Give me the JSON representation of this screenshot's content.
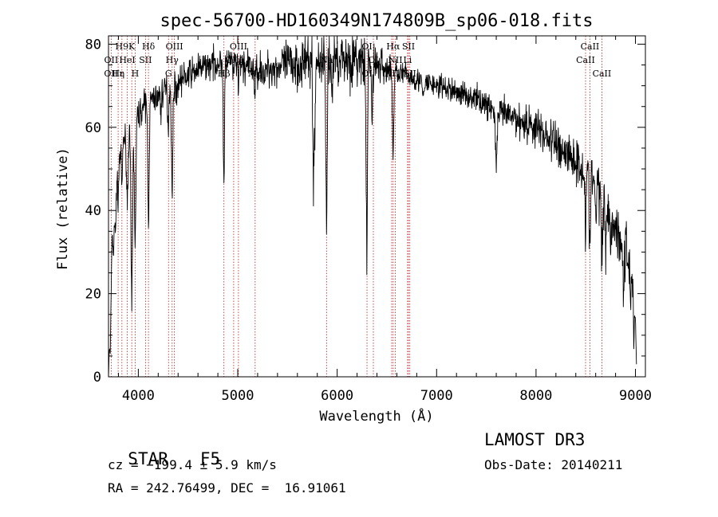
{
  "chart_data": {
    "type": "line",
    "title": "spec-56700-HD160349N174809B_sp06-018.fits",
    "xlabel": "Wavelength (Å)",
    "ylabel": "Flux (relative)",
    "xlim": [
      3700,
      9100
    ],
    "ylim": [
      0,
      82
    ],
    "xticks": [
      4000,
      5000,
      6000,
      7000,
      8000,
      9000
    ],
    "yticks": [
      0,
      20,
      40,
      60,
      80
    ],
    "grid": false,
    "color": "#000000",
    "line_color": "#b22222",
    "continuum": [
      [
        3700,
        0
      ],
      [
        3712,
        14
      ],
      [
        3725,
        28
      ],
      [
        3745,
        38
      ],
      [
        3770,
        46
      ],
      [
        3800,
        52
      ],
      [
        3850,
        57
      ],
      [
        3900,
        59
      ],
      [
        3950,
        60
      ],
      [
        4000,
        63
      ],
      [
        4050,
        65
      ],
      [
        4100,
        66
      ],
      [
        4200,
        67.5
      ],
      [
        4300,
        69.5
      ],
      [
        4400,
        71
      ],
      [
        4500,
        72.5
      ],
      [
        4600,
        74
      ],
      [
        4700,
        75
      ],
      [
        4800,
        75.5
      ],
      [
        4900,
        75.8
      ],
      [
        5000,
        75.5
      ],
      [
        5100,
        74.5
      ],
      [
        5200,
        74
      ],
      [
        5400,
        74.5
      ],
      [
        5600,
        75.5
      ],
      [
        5800,
        76
      ],
      [
        5900,
        76.5
      ],
      [
        6000,
        77
      ],
      [
        6100,
        76.5
      ],
      [
        6200,
        76
      ],
      [
        6300,
        75.5
      ],
      [
        6400,
        75
      ],
      [
        6500,
        74
      ],
      [
        6600,
        73.5
      ],
      [
        6700,
        72.5
      ],
      [
        6800,
        71.5
      ],
      [
        7000,
        70
      ],
      [
        7200,
        68.5
      ],
      [
        7400,
        67
      ],
      [
        7600,
        64
      ],
      [
        7800,
        62
      ],
      [
        8000,
        60
      ],
      [
        8200,
        56
      ],
      [
        8400,
        52
      ],
      [
        8600,
        47
      ],
      [
        8700,
        42
      ],
      [
        8800,
        36
      ],
      [
        8900,
        30
      ],
      [
        8960,
        27
      ],
      [
        9000,
        14
      ],
      [
        9010,
        3
      ]
    ],
    "absorption": [
      [
        3720,
        14,
        7
      ],
      [
        3750,
        10,
        6
      ],
      [
        3770,
        12,
        6
      ],
      [
        3797,
        9,
        6
      ],
      [
        3835,
        10,
        6
      ],
      [
        3889,
        16,
        8
      ],
      [
        3934,
        42,
        8
      ],
      [
        3968,
        30,
        7
      ],
      [
        4102,
        28,
        7
      ],
      [
        4227,
        5,
        4
      ],
      [
        4300,
        9,
        6
      ],
      [
        4340,
        26,
        7
      ],
      [
        4384,
        5,
        4
      ],
      [
        4861,
        30,
        6
      ],
      [
        4958,
        5,
        4
      ],
      [
        5007,
        8,
        4
      ],
      [
        5172,
        6,
        6
      ],
      [
        5270,
        4,
        6
      ],
      [
        5760,
        26,
        6
      ],
      [
        5775,
        18,
        6
      ],
      [
        5889,
        22,
        5
      ],
      [
        5896,
        33,
        5
      ],
      [
        5950,
        14,
        4
      ],
      [
        6290,
        20,
        5
      ],
      [
        6300,
        44,
        5
      ],
      [
        6350,
        15,
        5
      ],
      [
        6563,
        20,
        7
      ],
      [
        6867,
        4,
        10
      ],
      [
        7600,
        12,
        10
      ],
      [
        8498,
        12,
        7
      ],
      [
        8542,
        16,
        7
      ],
      [
        8600,
        10,
        6
      ],
      [
        8662,
        15,
        7
      ],
      [
        8700,
        10,
        6
      ],
      [
        8750,
        9,
        5
      ],
      [
        8880,
        13,
        5
      ],
      [
        8950,
        11,
        5
      ],
      [
        8985,
        10,
        5
      ]
    ],
    "noise": [
      [
        3700,
        2
      ],
      [
        4000,
        2.5
      ],
      [
        4800,
        2.5
      ],
      [
        5300,
        3
      ],
      [
        5700,
        5
      ],
      [
        6300,
        4.5
      ],
      [
        6600,
        2
      ],
      [
        7500,
        2.2
      ],
      [
        8000,
        3.5
      ],
      [
        8500,
        4.5
      ],
      [
        9000,
        5
      ]
    ],
    "lines": [
      {
        "label": "H9",
        "wl": 3835,
        "row": 0
      },
      {
        "label": "K",
        "wl": 3934,
        "row": 0
      },
      {
        "label": "Hδ",
        "wl": 4102,
        "row": 0
      },
      {
        "label": "OIII",
        "wl": 4363,
        "row": 0
      },
      {
        "label": "OIII",
        "wl": 5007,
        "row": 0
      },
      {
        "label": "OI",
        "wl": 6300,
        "row": 0
      },
      {
        "label": "Hα",
        "wl": 6563,
        "row": 0
      },
      {
        "label": "SII",
        "wl": 6717,
        "row": 0
      },
      {
        "label": "CaII",
        "wl": 8542,
        "row": 0
      },
      {
        "label": "OII",
        "wl": 3727,
        "row": 1
      },
      {
        "label": "HeI",
        "wl": 3889,
        "row": 1
      },
      {
        "label": "SII",
        "wl": 4072,
        "row": 1
      },
      {
        "label": "Hγ",
        "wl": 4340,
        "row": 1
      },
      {
        "label": "OIII",
        "wl": 4959,
        "row": 1
      },
      {
        "label": "Na",
        "wl": 5893,
        "row": 1
      },
      {
        "label": "OI",
        "wl": 6364,
        "row": 1
      },
      {
        "label": "NII",
        "wl": 6584,
        "row": 1
      },
      {
        "label": "Li",
        "wl": 6708,
        "row": 1
      },
      {
        "label": "CaII",
        "wl": 8498,
        "row": 1
      },
      {
        "label": "OII",
        "wl": 3726,
        "row": 2
      },
      {
        "label": "Hε",
        "wl": 3797,
        "row": 2
      },
      {
        "label": "η",
        "wl": 3835,
        "row": 2
      },
      {
        "label": "H",
        "wl": 3968,
        "row": 2
      },
      {
        "label": "G",
        "wl": 4304,
        "row": 2
      },
      {
        "label": "Hβ",
        "wl": 4861,
        "row": 2
      },
      {
        "label": "Mg",
        "wl": 5175,
        "row": 2
      },
      {
        "label": "OI",
        "wl": 6300,
        "row": 2
      },
      {
        "label": "NII",
        "wl": 6548,
        "row": 2
      },
      {
        "label": "SII",
        "wl": 6731,
        "row": 2
      },
      {
        "label": "CaII",
        "wl": 8662,
        "row": 2
      }
    ]
  },
  "info": {
    "class": "STAR",
    "subclass": "F5",
    "survey": "LAMOST DR3",
    "cz": "cz = −199.4 ± 5.9 km/s",
    "obs_date": "Obs-Date: 20140211",
    "coords": "RA = 242.76499, DEC =  16.91061"
  }
}
